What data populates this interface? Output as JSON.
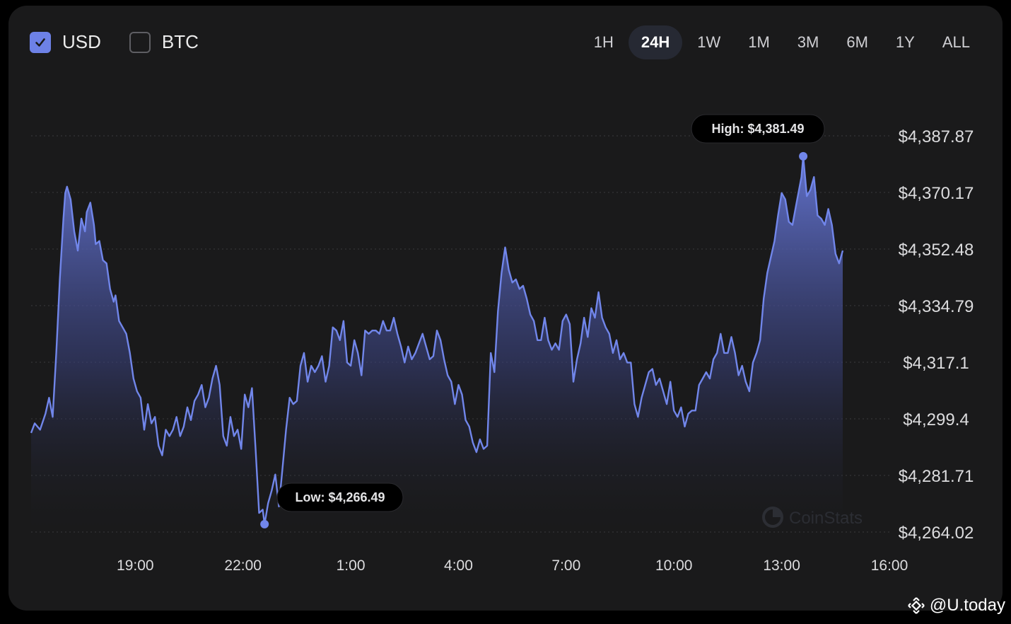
{
  "toggles": [
    {
      "label": "USD",
      "checked": true
    },
    {
      "label": "BTC",
      "checked": false
    }
  ],
  "ranges": [
    "1H",
    "24H",
    "1W",
    "1M",
    "3M",
    "6M",
    "1Y",
    "ALL"
  ],
  "active_range": "24H",
  "watermark": {
    "chart": "CoinStats",
    "site": "@U.today"
  },
  "colors": {
    "line": "#7186ea",
    "background": "#1a1a1b",
    "grid": "#3a3a3d"
  },
  "chart_data": {
    "type": "area",
    "x_tick_labels": [
      "19:00",
      "22:00",
      "1:00",
      "4:00",
      "7:00",
      "10:00",
      "13:00",
      "16:00"
    ],
    "y_tick_labels": [
      "$4,387.87",
      "$4,370.17",
      "$4,352.48",
      "$4,334.79",
      "$4,317.1",
      "$4,299.4",
      "$4,281.71",
      "$4,264.02"
    ],
    "ylim": [
      4264.02,
      4387.87
    ],
    "x_unit": "hours since 19:00",
    "xlim": [
      -2.9,
      21.0
    ],
    "grid": true,
    "high_label": "High: $4,381.49",
    "low_label": "Low: $4,266.49",
    "high": {
      "x": 18.6,
      "y": 4381.49
    },
    "low": {
      "x": 3.6,
      "y": 4266.49
    },
    "series": [
      {
        "points": [
          [
            -2.9,
            4295.0
          ],
          [
            -2.8,
            4298.0
          ],
          [
            -2.65,
            4296.0
          ],
          [
            -2.5,
            4301.0
          ],
          [
            -2.4,
            4306.0
          ],
          [
            -2.3,
            4300.0
          ],
          [
            -2.2,
            4320.0
          ],
          [
            -2.1,
            4343.0
          ],
          [
            -2.0,
            4362.0
          ],
          [
            -1.95,
            4370.0
          ],
          [
            -1.9,
            4372.0
          ],
          [
            -1.8,
            4368.0
          ],
          [
            -1.7,
            4358.0
          ],
          [
            -1.6,
            4352.0
          ],
          [
            -1.5,
            4362.0
          ],
          [
            -1.4,
            4358.0
          ],
          [
            -1.35,
            4364.0
          ],
          [
            -1.25,
            4367.0
          ],
          [
            -1.15,
            4360.0
          ],
          [
            -1.1,
            4354.0
          ],
          [
            -1.0,
            4355.0
          ],
          [
            -0.9,
            4349.0
          ],
          [
            -0.8,
            4348.0
          ],
          [
            -0.7,
            4340.0
          ],
          [
            -0.6,
            4336.0
          ],
          [
            -0.55,
            4338.0
          ],
          [
            -0.45,
            4330.0
          ],
          [
            -0.35,
            4328.0
          ],
          [
            -0.25,
            4326.0
          ],
          [
            -0.15,
            4320.0
          ],
          [
            -0.05,
            4312.0
          ],
          [
            0.05,
            4308.0
          ],
          [
            0.15,
            4306.0
          ],
          [
            0.25,
            4296.0
          ],
          [
            0.35,
            4304.0
          ],
          [
            0.45,
            4298.0
          ],
          [
            0.55,
            4300.0
          ],
          [
            0.65,
            4291.0
          ],
          [
            0.75,
            4288.0
          ],
          [
            0.85,
            4296.0
          ],
          [
            0.95,
            4294.0
          ],
          [
            1.05,
            4296.0
          ],
          [
            1.15,
            4300.0
          ],
          [
            1.25,
            4294.0
          ],
          [
            1.35,
            4297.0
          ],
          [
            1.45,
            4303.0
          ],
          [
            1.55,
            4299.0
          ],
          [
            1.65,
            4305.0
          ],
          [
            1.75,
            4307.0
          ],
          [
            1.85,
            4310.0
          ],
          [
            1.95,
            4303.0
          ],
          [
            2.05,
            4306.0
          ],
          [
            2.15,
            4312.0
          ],
          [
            2.25,
            4316.0
          ],
          [
            2.35,
            4310.0
          ],
          [
            2.45,
            4294.0
          ],
          [
            2.55,
            4291.0
          ],
          [
            2.65,
            4300.0
          ],
          [
            2.75,
            4294.0
          ],
          [
            2.85,
            4296.0
          ],
          [
            2.95,
            4290.0
          ],
          [
            3.05,
            4307.0
          ],
          [
            3.15,
            4303.0
          ],
          [
            3.25,
            4309.0
          ],
          [
            3.35,
            4290.0
          ],
          [
            3.45,
            4270.0
          ],
          [
            3.55,
            4271.0
          ],
          [
            3.6,
            4266.5
          ],
          [
            3.7,
            4273.0
          ],
          [
            3.8,
            4277.0
          ],
          [
            3.9,
            4282.0
          ],
          [
            4.0,
            4272.0
          ],
          [
            4.1,
            4284.0
          ],
          [
            4.2,
            4296.0
          ],
          [
            4.3,
            4306.0
          ],
          [
            4.4,
            4304.0
          ],
          [
            4.5,
            4305.0
          ],
          [
            4.6,
            4316.0
          ],
          [
            4.7,
            4320.0
          ],
          [
            4.8,
            4311.0
          ],
          [
            4.9,
            4316.0
          ],
          [
            5.0,
            4314.0
          ],
          [
            5.1,
            4316.0
          ],
          [
            5.2,
            4319.0
          ],
          [
            5.3,
            4311.0
          ],
          [
            5.4,
            4316.0
          ],
          [
            5.5,
            4328.0
          ],
          [
            5.6,
            4327.0
          ],
          [
            5.7,
            4324.0
          ],
          [
            5.8,
            4330.0
          ],
          [
            5.9,
            4317.0
          ],
          [
            6.0,
            4316.0
          ],
          [
            6.1,
            4324.0
          ],
          [
            6.2,
            4320.0
          ],
          [
            6.3,
            4313.0
          ],
          [
            6.4,
            4327.0
          ],
          [
            6.5,
            4326.0
          ],
          [
            6.6,
            4327.0
          ],
          [
            6.7,
            4327.0
          ],
          [
            6.8,
            4326.0
          ],
          [
            6.9,
            4330.0
          ],
          [
            7.0,
            4327.0
          ],
          [
            7.1,
            4327.0
          ],
          [
            7.2,
            4331.0
          ],
          [
            7.3,
            4326.0
          ],
          [
            7.4,
            4322.0
          ],
          [
            7.5,
            4317.0
          ],
          [
            7.6,
            4322.0
          ],
          [
            7.7,
            4318.0
          ],
          [
            7.8,
            4320.0
          ],
          [
            7.9,
            4323.0
          ],
          [
            8.0,
            4326.0
          ],
          [
            8.1,
            4322.0
          ],
          [
            8.2,
            4318.0
          ],
          [
            8.3,
            4319.0
          ],
          [
            8.4,
            4327.0
          ],
          [
            8.5,
            4324.0
          ],
          [
            8.6,
            4318.0
          ],
          [
            8.7,
            4313.0
          ],
          [
            8.8,
            4311.0
          ],
          [
            8.9,
            4304.0
          ],
          [
            9.0,
            4310.0
          ],
          [
            9.1,
            4307.0
          ],
          [
            9.2,
            4299.0
          ],
          [
            9.3,
            4297.0
          ],
          [
            9.4,
            4292.0
          ],
          [
            9.5,
            4289.0
          ],
          [
            9.6,
            4293.0
          ],
          [
            9.7,
            4290.0
          ],
          [
            9.8,
            4291.0
          ],
          [
            9.9,
            4320.0
          ],
          [
            10.0,
            4314.0
          ],
          [
            10.1,
            4333.0
          ],
          [
            10.2,
            4345.0
          ],
          [
            10.3,
            4353.0
          ],
          [
            10.4,
            4346.0
          ],
          [
            10.5,
            4342.0
          ],
          [
            10.6,
            4343.0
          ],
          [
            10.7,
            4340.0
          ],
          [
            10.8,
            4341.0
          ],
          [
            10.9,
            4337.0
          ],
          [
            11.0,
            4332.0
          ],
          [
            11.1,
            4330.0
          ],
          [
            11.2,
            4324.0
          ],
          [
            11.3,
            4324.0
          ],
          [
            11.4,
            4331.0
          ],
          [
            11.5,
            4324.0
          ],
          [
            11.6,
            4321.0
          ],
          [
            11.7,
            4323.0
          ],
          [
            11.8,
            4321.0
          ],
          [
            11.9,
            4330.0
          ],
          [
            12.0,
            4332.0
          ],
          [
            12.1,
            4329.0
          ],
          [
            12.2,
            4311.0
          ],
          [
            12.3,
            4318.0
          ],
          [
            12.4,
            4323.0
          ],
          [
            12.5,
            4331.0
          ],
          [
            12.6,
            4325.0
          ],
          [
            12.7,
            4334.0
          ],
          [
            12.8,
            4331.0
          ],
          [
            12.9,
            4339.0
          ],
          [
            13.0,
            4331.0
          ],
          [
            13.1,
            4328.0
          ],
          [
            13.2,
            4326.0
          ],
          [
            13.3,
            4320.0
          ],
          [
            13.4,
            4324.0
          ],
          [
            13.5,
            4318.0
          ],
          [
            13.6,
            4320.0
          ],
          [
            13.7,
            4317.0
          ],
          [
            13.8,
            4317.0
          ],
          [
            13.9,
            4304.0
          ],
          [
            14.0,
            4300.0
          ],
          [
            14.1,
            4306.0
          ],
          [
            14.2,
            4310.0
          ],
          [
            14.3,
            4314.0
          ],
          [
            14.4,
            4315.0
          ],
          [
            14.5,
            4310.0
          ],
          [
            14.6,
            4312.0
          ],
          [
            14.7,
            4308.0
          ],
          [
            14.8,
            4304.0
          ],
          [
            14.9,
            4311.0
          ],
          [
            15.0,
            4302.0
          ],
          [
            15.1,
            4300.0
          ],
          [
            15.2,
            4303.0
          ],
          [
            15.3,
            4297.0
          ],
          [
            15.4,
            4301.0
          ],
          [
            15.5,
            4302.0
          ],
          [
            15.6,
            4302.0
          ],
          [
            15.7,
            4310.0
          ],
          [
            15.8,
            4312.0
          ],
          [
            15.9,
            4314.0
          ],
          [
            16.0,
            4312.0
          ],
          [
            16.1,
            4318.0
          ],
          [
            16.2,
            4320.0
          ],
          [
            16.3,
            4326.0
          ],
          [
            16.4,
            4320.0
          ],
          [
            16.5,
            4320.0
          ],
          [
            16.6,
            4325.0
          ],
          [
            16.7,
            4320.0
          ],
          [
            16.8,
            4313.0
          ],
          [
            16.9,
            4316.0
          ],
          [
            17.0,
            4311.0
          ],
          [
            17.1,
            4308.0
          ],
          [
            17.2,
            4317.0
          ],
          [
            17.3,
            4320.0
          ],
          [
            17.4,
            4324.0
          ],
          [
            17.5,
            4337.0
          ],
          [
            17.6,
            4345.0
          ],
          [
            17.7,
            4350.0
          ],
          [
            17.8,
            4355.0
          ],
          [
            17.9,
            4363.0
          ],
          [
            18.0,
            4370.0
          ],
          [
            18.1,
            4368.0
          ],
          [
            18.2,
            4361.0
          ],
          [
            18.3,
            4360.0
          ],
          [
            18.4,
            4366.0
          ],
          [
            18.5,
            4372.0
          ],
          [
            18.55,
            4375.0
          ],
          [
            18.6,
            4381.5
          ],
          [
            18.7,
            4369.0
          ],
          [
            18.8,
            4371.0
          ],
          [
            18.9,
            4375.0
          ],
          [
            19.0,
            4363.0
          ],
          [
            19.1,
            4362.0
          ],
          [
            19.2,
            4360.0
          ],
          [
            19.3,
            4365.0
          ],
          [
            19.4,
            4360.0
          ],
          [
            19.5,
            4351.0
          ],
          [
            19.6,
            4348.0
          ],
          [
            19.7,
            4352.0
          ]
        ]
      }
    ]
  }
}
